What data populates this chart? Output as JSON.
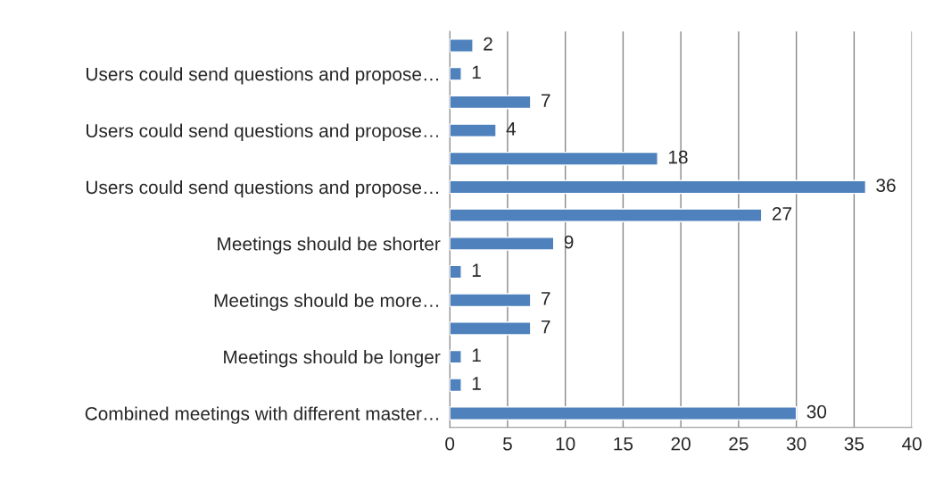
{
  "chart_data": {
    "type": "bar",
    "orientation": "horizontal",
    "categories": [
      null,
      "Users could send questions and propose…",
      null,
      "Users could send questions and propose…",
      null,
      "Users could send questions and propose…",
      null,
      "Meetings should be shorter",
      null,
      "Meetings should be more…",
      null,
      "Meetings should be longer",
      null,
      "Combined meetings with different master…"
    ],
    "values": [
      2,
      1,
      7,
      4,
      18,
      36,
      27,
      9,
      1,
      7,
      7,
      1,
      1,
      30
    ],
    "color": "#4f81bd",
    "xlim": [
      0,
      40
    ],
    "xticks": [
      0,
      5,
      10,
      15,
      20,
      25,
      30,
      35,
      40
    ],
    "grid": "x",
    "data_labels": true
  }
}
